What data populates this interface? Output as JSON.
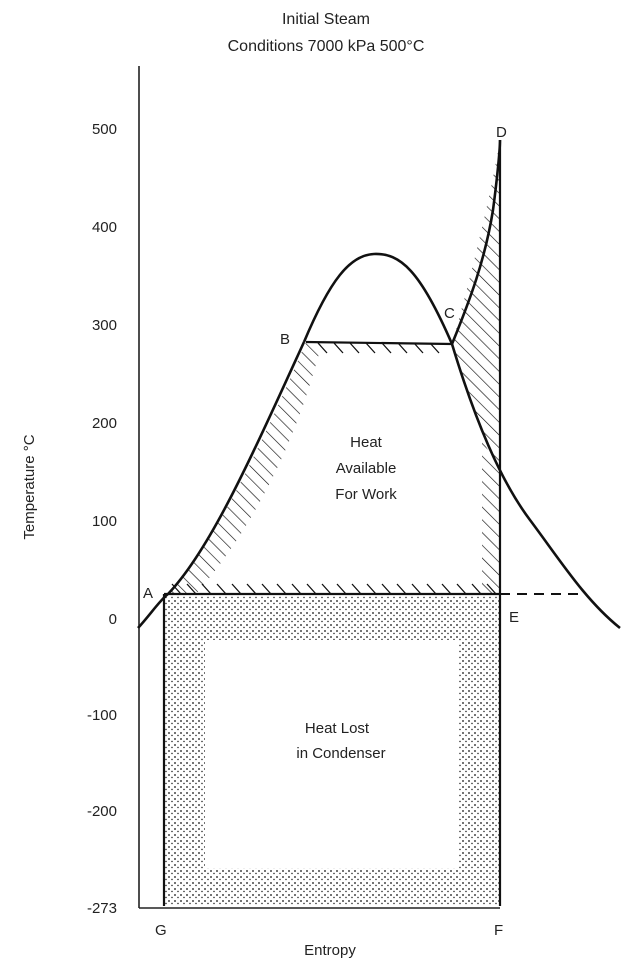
{
  "title": [
    "Initial Steam",
    "Conditions 7000 kPa 500°C"
  ],
  "axes": {
    "y_label": "Temperature °C",
    "x_label": "Entropy",
    "y_ticks": [
      "500",
      "400",
      "300",
      "200",
      "100",
      "0",
      "-100",
      "-200",
      "-273"
    ]
  },
  "points": {
    "A": "A",
    "B": "B",
    "C": "C",
    "D": "D",
    "E": "E",
    "F": "F",
    "G": "G"
  },
  "regions": {
    "work": [
      "Heat",
      "Available",
      "For Work"
    ],
    "lost": [
      "Heat Lost",
      "in Condenser"
    ]
  }
}
